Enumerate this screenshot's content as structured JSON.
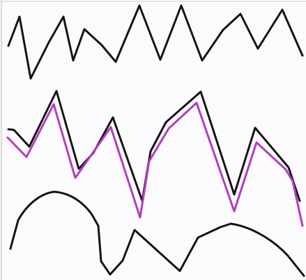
{
  "drawing": {
    "paper_color": "#fbfbfd",
    "ink_colors": {
      "black": "#141414",
      "purple": "#b43cc0"
    },
    "strokes": [
      {
        "name": "top-zigzag-line",
        "color": "black"
      },
      {
        "name": "middle-black-line",
        "color": "black"
      },
      {
        "name": "middle-purple-line",
        "color": "purple"
      },
      {
        "name": "bottom-wavy-line",
        "color": "black"
      }
    ]
  }
}
